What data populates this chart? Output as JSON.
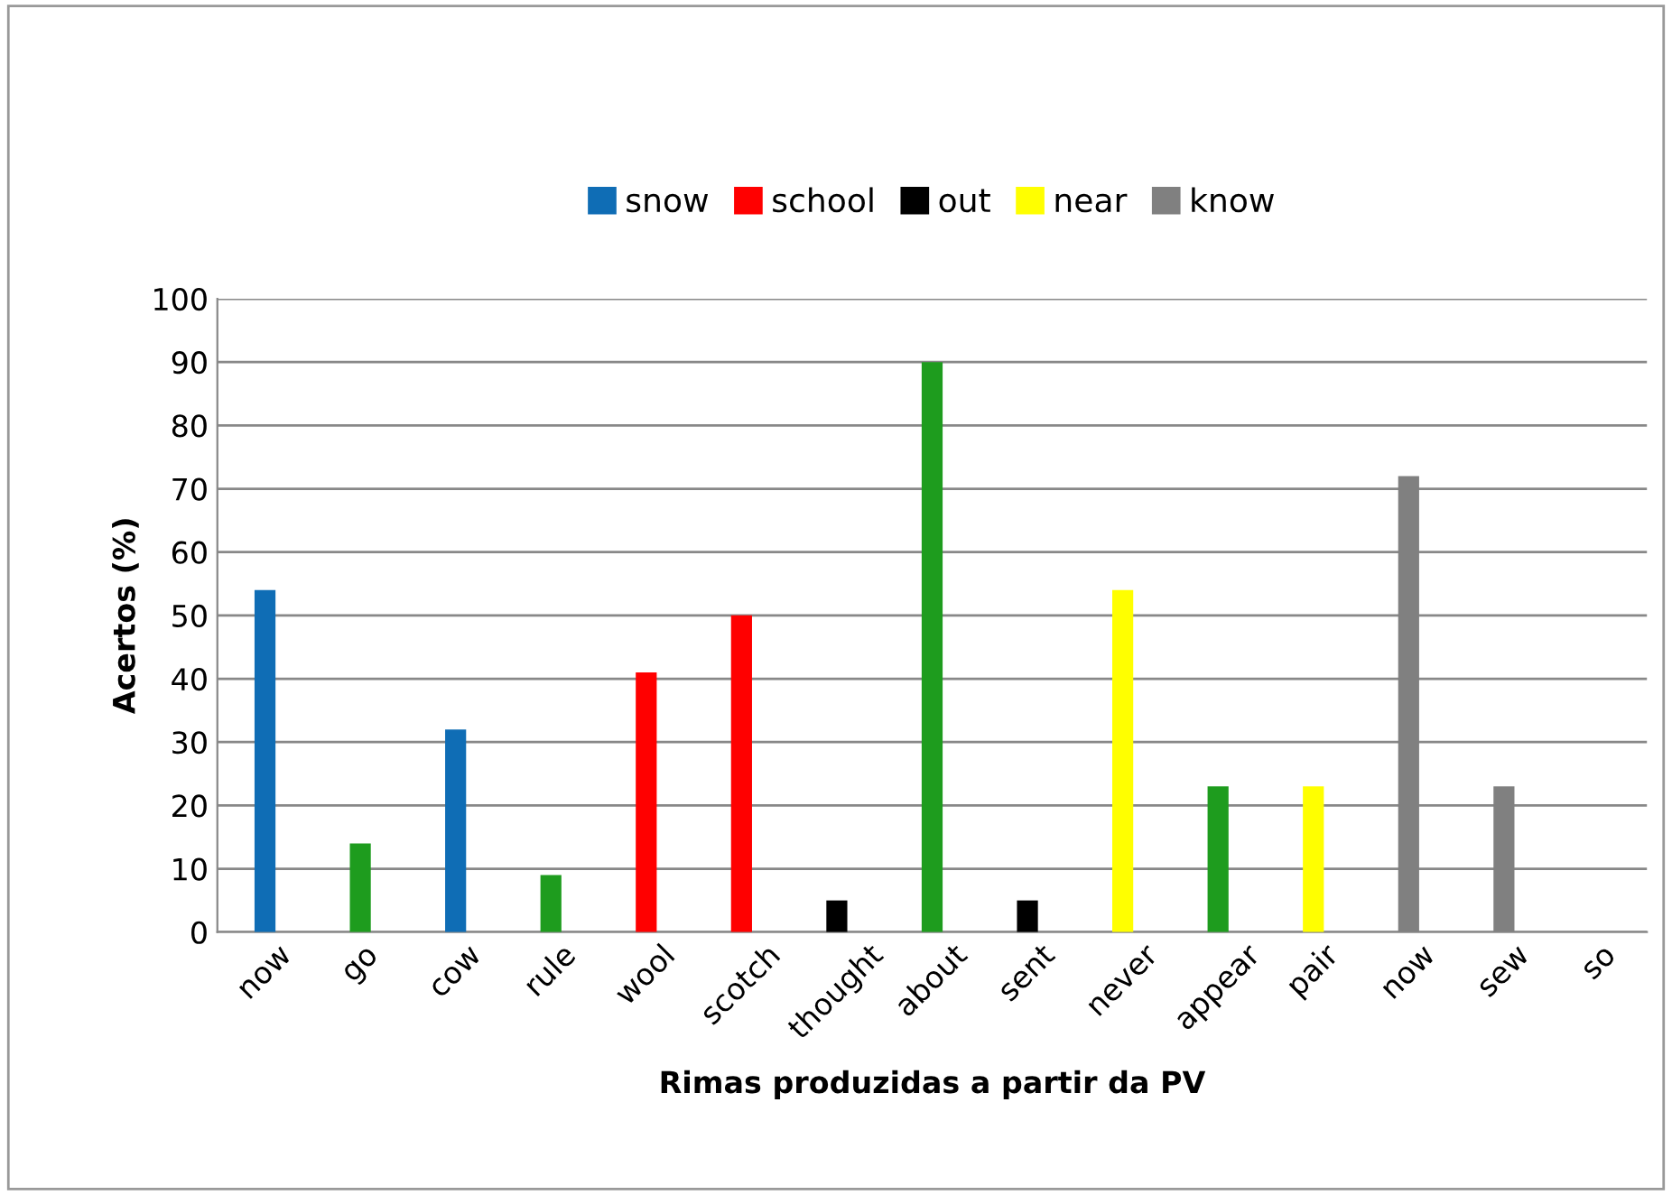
{
  "chart_data": {
    "type": "bar",
    "xlabel": "Rimas produzidas a partir da PV",
    "ylabel": "Acertos (%)",
    "categories": [
      "now",
      "go",
      "cow",
      "rule",
      "wool",
      "scotch",
      "thought",
      "about",
      "sent",
      "never",
      "appear",
      "pair",
      "now",
      "sew",
      "so"
    ],
    "series": [
      {
        "name": "snow",
        "color": "#0f6db5",
        "values": [
          54,
          null,
          32,
          null,
          null,
          null,
          null,
          null,
          null,
          null,
          null,
          null,
          null,
          null,
          null
        ]
      },
      {
        "color": "#1e9c1e",
        "values": [
          null,
          14,
          null,
          9,
          null,
          null,
          null,
          90,
          null,
          null,
          23,
          null,
          null,
          null,
          null
        ]
      },
      {
        "name": "school",
        "color": "#ff0000",
        "values": [
          null,
          null,
          null,
          null,
          41,
          50,
          null,
          null,
          null,
          null,
          null,
          null,
          null,
          null,
          null
        ]
      },
      {
        "name": "out",
        "color": "#000000",
        "values": [
          null,
          null,
          null,
          null,
          null,
          null,
          5,
          null,
          5,
          null,
          null,
          null,
          null,
          null,
          null
        ]
      },
      {
        "name": "near",
        "color": "#ffff00",
        "values": [
          null,
          null,
          null,
          null,
          null,
          null,
          null,
          null,
          null,
          54,
          null,
          23,
          null,
          null,
          null
        ]
      },
      {
        "name": "know",
        "color": "#808080",
        "values": [
          null,
          null,
          null,
          null,
          null,
          null,
          null,
          null,
          null,
          null,
          null,
          null,
          72,
          23,
          null
        ]
      }
    ],
    "ylim": [
      0,
      100
    ],
    "yticks": [
      0,
      10,
      20,
      30,
      40,
      50,
      60,
      70,
      80,
      90,
      100
    ],
    "grid": "y",
    "legend": "top"
  }
}
